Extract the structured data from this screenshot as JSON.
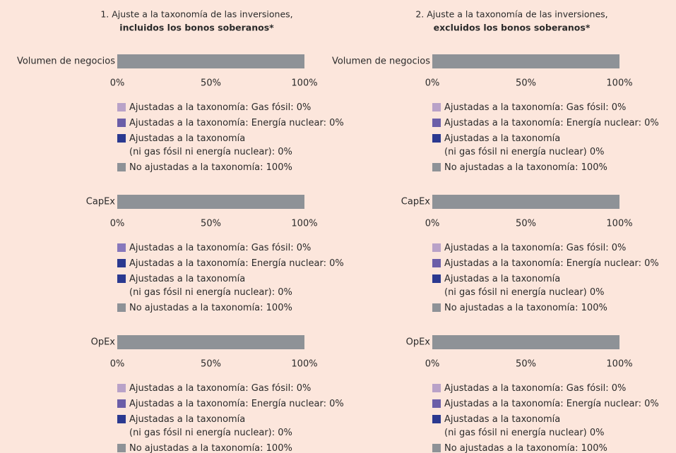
{
  "chart_data": [
    {
      "type": "bar",
      "title": "1. Ajuste a la taxonomía de las inversiones,",
      "subtitle": "incluidos los bonos soberanos*",
      "orientation": "horizontal",
      "stacked": true,
      "categories": [
        "Volumen de negocios"
      ],
      "xlim": [
        0,
        100
      ],
      "xticks": [
        {
          "value": 0,
          "label": "0%"
        },
        {
          "value": 50,
          "label": "50%"
        },
        {
          "value": 100,
          "label": "100%"
        }
      ],
      "series": [
        {
          "name": "Ajustadas a la taxonomía: Gas fósil: 0%",
          "color": "#b9a2c8",
          "values": [
            0
          ]
        },
        {
          "name": "Ajustadas a la taxonomía: Energía nuclear: 0%",
          "color": "#6b5ea8",
          "values": [
            0
          ]
        },
        {
          "name": "Ajustadas a la taxonomía\n(ni gas fósil ni energía nuclear): 0%",
          "color": "#2b3990",
          "values": [
            0
          ]
        },
        {
          "name": "No ajustadas a la taxonomía: 100%",
          "color": "#8e9297",
          "values": [
            100
          ]
        }
      ]
    },
    {
      "type": "bar",
      "orientation": "horizontal",
      "stacked": true,
      "categories": [
        "CapEx"
      ],
      "xlim": [
        0,
        100
      ],
      "xticks": [
        {
          "value": 0,
          "label": "0%"
        },
        {
          "value": 50,
          "label": "50%"
        },
        {
          "value": 100,
          "label": "100%"
        }
      ],
      "series": [
        {
          "name": "Ajustadas a la taxonomía: Gas fósil: 0%",
          "color": "#8878bc",
          "values": [
            0
          ]
        },
        {
          "name": "Ajustadas a la taxonomía: Energía nuclear: 0%",
          "color": "#2b3990",
          "values": [
            0
          ]
        },
        {
          "name": "Ajustadas a la taxonomía\n(ni gas fósil ni energía nuclear): 0%",
          "color": "#2b3990",
          "values": [
            0
          ]
        },
        {
          "name": "No ajustadas a la taxonomía: 100%",
          "color": "#8e9297",
          "values": [
            100
          ]
        }
      ]
    },
    {
      "type": "bar",
      "orientation": "horizontal",
      "stacked": true,
      "categories": [
        "OpEx"
      ],
      "xlim": [
        0,
        100
      ],
      "xticks": [
        {
          "value": 0,
          "label": "0%"
        },
        {
          "value": 50,
          "label": "50%"
        },
        {
          "value": 100,
          "label": "100%"
        }
      ],
      "series": [
        {
          "name": "Ajustadas a la taxonomía: Gas fósil: 0%",
          "color": "#b9a2c8",
          "values": [
            0
          ]
        },
        {
          "name": "Ajustadas a la taxonomía: Energía nuclear: 0%",
          "color": "#6b5ea8",
          "values": [
            0
          ]
        },
        {
          "name": "Ajustadas a la taxonomía\n(ni gas fósil ni energía nuclear): 0%",
          "color": "#2b3990",
          "values": [
            0
          ]
        },
        {
          "name": "No ajustadas a la taxonomía: 100%",
          "color": "#8e9297",
          "values": [
            100
          ]
        }
      ]
    },
    {
      "type": "bar",
      "title": "2. Ajuste a la taxonomía de las inversiones,",
      "subtitle": "excluidos los bonos soberanos*",
      "orientation": "horizontal",
      "stacked": true,
      "categories": [
        "Volumen de negocios"
      ],
      "xlim": [
        0,
        100
      ],
      "xticks": [
        {
          "value": 0,
          "label": "0%"
        },
        {
          "value": 50,
          "label": "50%"
        },
        {
          "value": 100,
          "label": "100%"
        }
      ],
      "series": [
        {
          "name": "Ajustadas a la taxonomía: Gas fósil: 0%",
          "color": "#b9a2c8",
          "values": [
            0
          ]
        },
        {
          "name": "Ajustadas a la taxonomía: Energía nuclear: 0%",
          "color": "#6b5ea8",
          "values": [
            0
          ]
        },
        {
          "name": "Ajustadas a la taxonomía\n(ni gas fósil ni energía nuclear) 0%",
          "color": "#2b3990",
          "values": [
            0
          ]
        },
        {
          "name": "No ajustadas a la taxonomía: 100%",
          "color": "#8e9297",
          "values": [
            100
          ]
        }
      ]
    },
    {
      "type": "bar",
      "orientation": "horizontal",
      "stacked": true,
      "categories": [
        "CapEx"
      ],
      "xlim": [
        0,
        100
      ],
      "xticks": [
        {
          "value": 0,
          "label": "0%"
        },
        {
          "value": 50,
          "label": "50%"
        },
        {
          "value": 100,
          "label": "100%"
        }
      ],
      "series": [
        {
          "name": "Ajustadas a la taxonomía: Gas fósil: 0%",
          "color": "#b9a2c8",
          "values": [
            0
          ]
        },
        {
          "name": "Ajustadas a la taxonomía: Energía nuclear: 0%",
          "color": "#6b5ea8",
          "values": [
            0
          ]
        },
        {
          "name": "Ajustadas a la taxonomía\n(ni gas fósil ni energía nuclear) 0%",
          "color": "#2b3990",
          "values": [
            0
          ]
        },
        {
          "name": "No ajustadas a la taxonomía: 100%",
          "color": "#8e9297",
          "values": [
            100
          ]
        }
      ]
    },
    {
      "type": "bar",
      "orientation": "horizontal",
      "stacked": true,
      "categories": [
        "OpEx"
      ],
      "xlim": [
        0,
        100
      ],
      "xticks": [
        {
          "value": 0,
          "label": "0%"
        },
        {
          "value": 50,
          "label": "50%"
        },
        {
          "value": 100,
          "label": "100%"
        }
      ],
      "series": [
        {
          "name": "Ajustadas a la taxonomía: Gas fósil: 0%",
          "color": "#b9a2c8",
          "values": [
            0
          ]
        },
        {
          "name": "Ajustadas a la taxonomía: Energía nuclear: 0%",
          "color": "#6b5ea8",
          "values": [
            0
          ]
        },
        {
          "name": "Ajustadas a la taxonomía\n(ni gas fósil ni energía nuclear) 0%",
          "color": "#2b3990",
          "values": [
            0
          ]
        },
        {
          "name": "No ajustadas a la taxonomía: 100%",
          "color": "#8e9297",
          "values": [
            100
          ]
        }
      ]
    }
  ]
}
